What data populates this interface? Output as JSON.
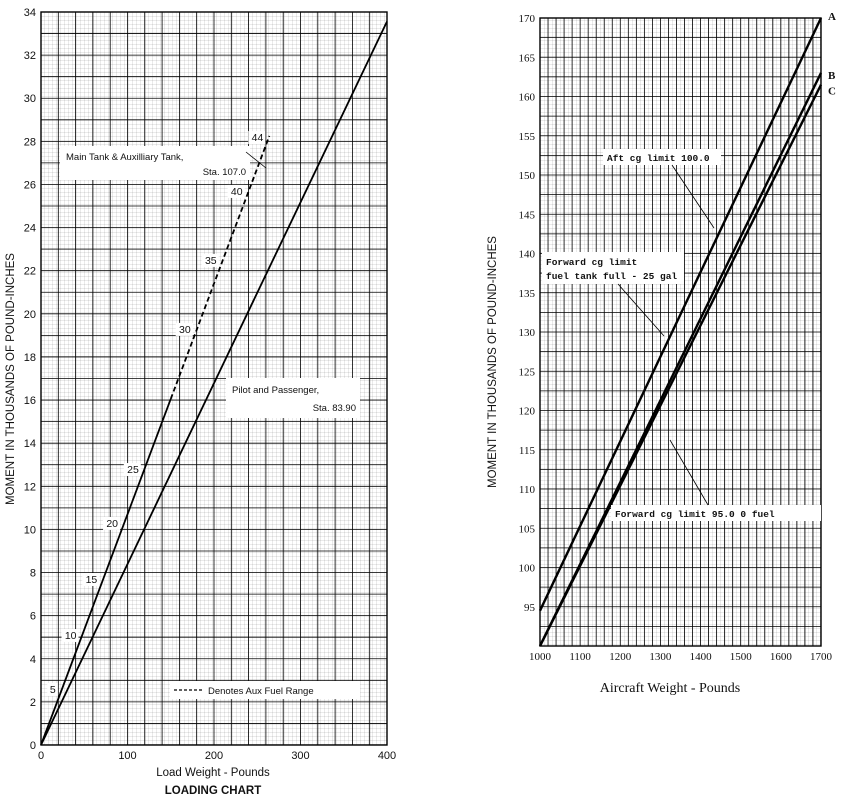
{
  "chart_data": [
    {
      "type": "line",
      "title": "LOADING CHART",
      "xlabel": "Load Weight - Pounds",
      "ylabel": "MOMENT IN THOUSANDS OF POUND-INCHES",
      "xlim": [
        0,
        400
      ],
      "ylim": [
        0,
        34
      ],
      "x_ticks": [
        "0",
        "100",
        "200",
        "300",
        "400"
      ],
      "y_ticks": [
        "0",
        "2",
        "4",
        "6",
        "8",
        "10",
        "12",
        "14",
        "16",
        "18",
        "20",
        "22",
        "24",
        "26",
        "28",
        "30",
        "32",
        "34"
      ],
      "grid": true,
      "series": [
        {
          "name": "Pilot and Passenger, Sta. 83.90",
          "style": "solid",
          "x": [
            0,
            400
          ],
          "y": [
            0,
            33.56
          ]
        },
        {
          "name": "Main Tank & Auxilliary Tank, Sta. 107.0",
          "style": "solid",
          "x": [
            0,
            150
          ],
          "y": [
            0,
            16.05
          ]
        },
        {
          "name": "Denotes Aux Fuel Range",
          "style": "dashed",
          "x": [
            150,
            264
          ],
          "y": [
            16.05,
            28.25
          ]
        }
      ],
      "gallon_marks": [
        {
          "label": "5",
          "x": 24,
          "y": 2.6
        },
        {
          "label": "10",
          "x": 48,
          "y": 5.1
        },
        {
          "label": "15",
          "x": 72,
          "y": 7.7
        },
        {
          "label": "20",
          "x": 96,
          "y": 10.3
        },
        {
          "label": "25",
          "x": 120,
          "y": 12.8
        },
        {
          "label": "30",
          "x": 180,
          "y": 19.3
        },
        {
          "label": "35",
          "x": 210,
          "y": 22.5
        },
        {
          "label": "40",
          "x": 240,
          "y": 25.7
        },
        {
          "label": "44",
          "x": 264,
          "y": 28.2
        }
      ],
      "annotations": {
        "main_tank_1": "Main Tank & Auxilliary Tank,",
        "main_tank_2": "Sta. 107.0",
        "pilot_1": "Pilot and Passenger,",
        "pilot_2": "Sta. 83.90",
        "legend": "Denotes Aux Fuel Range"
      }
    },
    {
      "type": "line",
      "xlabel": "Aircraft Weight - Pounds",
      "ylabel": "MOMENT IN THOUSANDS OF POUND-INCHES",
      "xlim": [
        1000,
        1700
      ],
      "ylim": [
        90,
        170
      ],
      "x_ticks": [
        "1000",
        "1100",
        "1200",
        "1300",
        "1400",
        "1500",
        "1600",
        "1700"
      ],
      "y_ticks": [
        "95",
        "100",
        "105",
        "110",
        "115",
        "120",
        "125",
        "130",
        "135",
        "140",
        "145",
        "150",
        "155",
        "160",
        "165",
        "170"
      ],
      "grid": true,
      "series": [
        {
          "name": "A",
          "x": [
            1000,
            1700
          ],
          "y": [
            94.5,
            170
          ]
        },
        {
          "name": "B",
          "x": [
            1000,
            1700
          ],
          "y": [
            90,
            163
          ]
        },
        {
          "name": "C",
          "x": [
            1000,
            1700
          ],
          "y": [
            90,
            161.5
          ]
        }
      ],
      "annotations": {
        "aft": "Aft cg limit 100.0",
        "fwd_full_1": "Forward cg limit",
        "fwd_full_2": "fuel tank full - 25 gal",
        "fwd_empty": "Forward cg limit 95.0  0 fuel"
      }
    }
  ]
}
